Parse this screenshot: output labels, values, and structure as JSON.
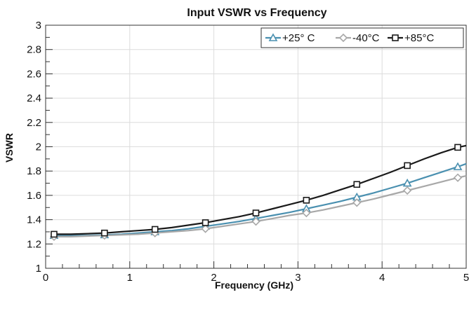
{
  "chart_data": {
    "type": "line",
    "title": "Input VSWR vs Frequency",
    "xlabel": "Frequency (GHz)",
    "ylabel": "VSWR",
    "xlim": [
      0,
      5
    ],
    "ylim": [
      1,
      3
    ],
    "x_ticks": [
      0,
      1,
      2,
      3,
      4,
      5
    ],
    "y_ticks": [
      1,
      1.2,
      1.4,
      1.6,
      1.8,
      2,
      2.2,
      2.4,
      2.6,
      2.8,
      3
    ],
    "grid": true,
    "legend_position": "top-right",
    "x": [
      0.1,
      0.3,
      0.5,
      0.7,
      0.9,
      1.1,
      1.3,
      1.5,
      1.7,
      1.9,
      2.1,
      2.3,
      2.5,
      2.7,
      2.9,
      3.1,
      3.3,
      3.5,
      3.7,
      3.9,
      4.1,
      4.3,
      4.5,
      4.7,
      4.9,
      5.0
    ],
    "series": [
      {
        "name": "+25° C",
        "color": "#4a90b0",
        "marker": "triangle",
        "values": [
          1.27,
          1.27,
          1.27,
          1.275,
          1.28,
          1.29,
          1.3,
          1.31,
          1.325,
          1.345,
          1.365,
          1.385,
          1.41,
          1.435,
          1.46,
          1.49,
          1.52,
          1.55,
          1.585,
          1.62,
          1.66,
          1.7,
          1.745,
          1.79,
          1.835,
          1.86
        ]
      },
      {
        "name": "-40°C",
        "color": "#a8a8a8",
        "marker": "diamond",
        "values": [
          1.26,
          1.26,
          1.265,
          1.27,
          1.275,
          1.28,
          1.29,
          1.3,
          1.31,
          1.325,
          1.345,
          1.365,
          1.385,
          1.41,
          1.435,
          1.455,
          1.48,
          1.51,
          1.54,
          1.57,
          1.605,
          1.64,
          1.675,
          1.71,
          1.745,
          1.76
        ]
      },
      {
        "name": "+85°C",
        "color": "#1a1a1a",
        "marker": "square",
        "values": [
          1.28,
          1.28,
          1.285,
          1.29,
          1.3,
          1.31,
          1.32,
          1.335,
          1.355,
          1.375,
          1.4,
          1.425,
          1.455,
          1.49,
          1.525,
          1.56,
          1.6,
          1.645,
          1.69,
          1.74,
          1.79,
          1.845,
          1.9,
          1.95,
          1.995,
          2.01
        ]
      }
    ]
  }
}
